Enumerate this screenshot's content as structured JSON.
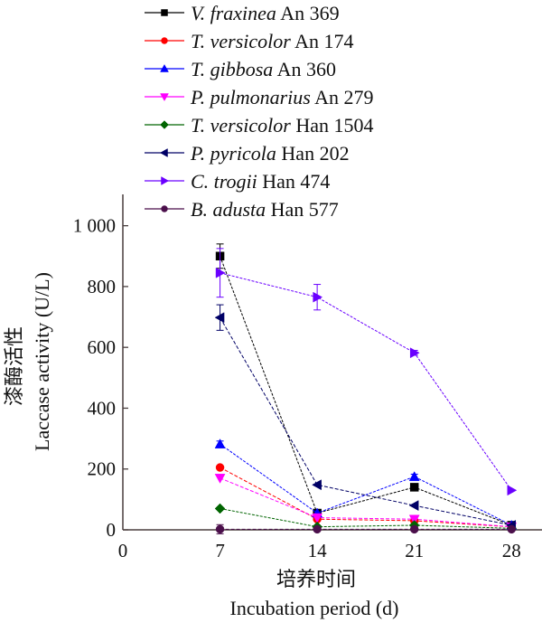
{
  "chart_data": {
    "type": "line",
    "xlabel_cn": "培养时间",
    "xlabel": "Incubation period (d)",
    "ylabel_cn": "漆酶活性",
    "ylabel": "Laccase activity (U/L)",
    "x": [
      7,
      14,
      21,
      28
    ],
    "xlim": [
      0,
      30
    ],
    "ylim": [
      0,
      1100
    ],
    "xticks": [
      "0",
      "7",
      "14",
      "21",
      "28"
    ],
    "xtick_values": [
      0,
      7,
      14,
      21,
      28
    ],
    "yticks": [
      "0",
      "200",
      "400",
      "600",
      "800",
      "1 000"
    ],
    "ytick_values": [
      0,
      200,
      400,
      600,
      800,
      1000
    ],
    "grid": false,
    "legend_placement": "top",
    "series": [
      {
        "name_italic": "V. fraxinea",
        "name_rest": " An 369",
        "color": "#000000",
        "marker": "square",
        "values": [
          900,
          55,
          140,
          15
        ],
        "errors": [
          40,
          0,
          0,
          0
        ]
      },
      {
        "name_italic": "T. versicolor",
        "name_rest": " An 174",
        "color": "#ff0000",
        "marker": "circle",
        "values": [
          205,
          35,
          30,
          10
        ],
        "errors": [
          0,
          0,
          0,
          0
        ]
      },
      {
        "name_italic": "T. gibbosa",
        "name_rest": " An 360",
        "color": "#0000ff",
        "marker": "triangle-up",
        "values": [
          282,
          55,
          175,
          15
        ],
        "errors": [
          10,
          0,
          8,
          0
        ]
      },
      {
        "name_italic": "P. pulmonarius",
        "name_rest": " An 279",
        "color": "#ff00ff",
        "marker": "triangle-down",
        "values": [
          170,
          40,
          35,
          10
        ],
        "errors": [
          0,
          0,
          0,
          0
        ]
      },
      {
        "name_italic": "T. versicolor",
        "name_rest": " Han 1504",
        "color": "#006400",
        "marker": "diamond",
        "values": [
          70,
          10,
          15,
          5
        ],
        "errors": [
          0,
          0,
          0,
          0
        ]
      },
      {
        "name_italic": "P. pyricola",
        "name_rest": " Han 202",
        "color": "#000066",
        "marker": "triangle-left",
        "values": [
          698,
          148,
          80,
          15
        ],
        "errors": [
          42,
          0,
          0,
          0
        ]
      },
      {
        "name_italic": "C. trogii",
        "name_rest": " Han 474",
        "color": "#6a00ff",
        "marker": "triangle-right",
        "values": [
          845,
          765,
          582,
          130
        ],
        "errors": [
          80,
          42,
          8,
          0
        ]
      },
      {
        "name_italic": "B. adusta",
        "name_rest": " Han 577",
        "color": "#4b0f4b",
        "marker": "circle",
        "values": [
          2,
          2,
          2,
          2
        ],
        "errors": [
          15,
          0,
          0,
          0
        ]
      }
    ]
  }
}
